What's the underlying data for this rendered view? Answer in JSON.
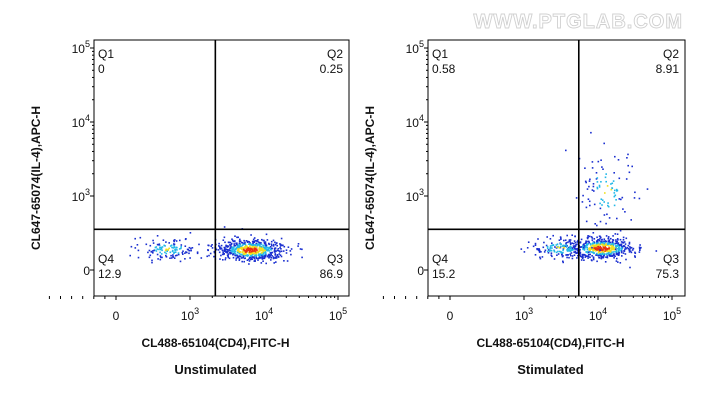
{
  "watermark": "WWW.PTGLAB.COM",
  "colors": {
    "axis": "#000000",
    "density_low": "#1a2fd0",
    "density_mid": "#22b8e8",
    "density_high": "#f0e020",
    "density_peak": "#e83010",
    "watermark": "#d6d6d6"
  },
  "chart_data": [
    {
      "type": "scatter",
      "subtype": "flow-cytometry-density-dot-plot",
      "title": "",
      "caption": "Unstimulated",
      "xlabel": "CL488-65104(CD4),FITC-H",
      "ylabel": "CL647-65074(IL-4),APC-H",
      "x_scale": "biexponential",
      "y_scale": "biexponential",
      "x_ticks": [
        "0",
        "10^3",
        "10^4",
        "10^5"
      ],
      "y_ticks": [
        "0",
        "10^3",
        "10^4",
        "10^5"
      ],
      "gate": {
        "x": 2200,
        "y": 550
      },
      "quadrants": [
        {
          "name": "Q1",
          "value": "0",
          "position": "top-left"
        },
        {
          "name": "Q2",
          "value": "0.25",
          "position": "top-right"
        },
        {
          "name": "Q3",
          "value": "86.9",
          "position": "bottom-right"
        },
        {
          "name": "Q4",
          "value": "12.9",
          "position": "bottom-left"
        }
      ],
      "populations": [
        {
          "label": "CD4+ IL-4-",
          "center_x": 6500,
          "center_y": 280,
          "share_percent": 86.9
        },
        {
          "label": "CD4- IL-4-",
          "center_x": 700,
          "center_y": 290,
          "share_percent": 12.9
        }
      ]
    },
    {
      "type": "scatter",
      "subtype": "flow-cytometry-density-dot-plot",
      "title": "",
      "caption": "Stimulated",
      "xlabel": "CL488-65104(CD4),FITC-H",
      "ylabel": "CL647-65074(IL-4),APC-H",
      "x_scale": "biexponential",
      "y_scale": "biexponential",
      "x_ticks": [
        "0",
        "10^3",
        "10^4",
        "10^5"
      ],
      "y_ticks": [
        "0",
        "10^3",
        "10^4",
        "10^5"
      ],
      "gate": {
        "x": 5500,
        "y": 550
      },
      "quadrants": [
        {
          "name": "Q1",
          "value": "0.58",
          "position": "top-left"
        },
        {
          "name": "Q2",
          "value": "8.91",
          "position": "top-right"
        },
        {
          "name": "Q3",
          "value": "75.3",
          "position": "bottom-right"
        },
        {
          "name": "Q4",
          "value": "15.2",
          "position": "bottom-left"
        }
      ],
      "populations": [
        {
          "label": "CD4+ IL-4-",
          "center_x": 11000,
          "center_y": 300,
          "share_percent": 75.3
        },
        {
          "label": "CD4- IL-4-",
          "center_x": 3000,
          "center_y": 300,
          "share_percent": 15.2
        },
        {
          "label": "CD4+ IL-4+",
          "center_x": 13000,
          "center_y": 1200,
          "share_percent": 8.91
        }
      ]
    }
  ]
}
